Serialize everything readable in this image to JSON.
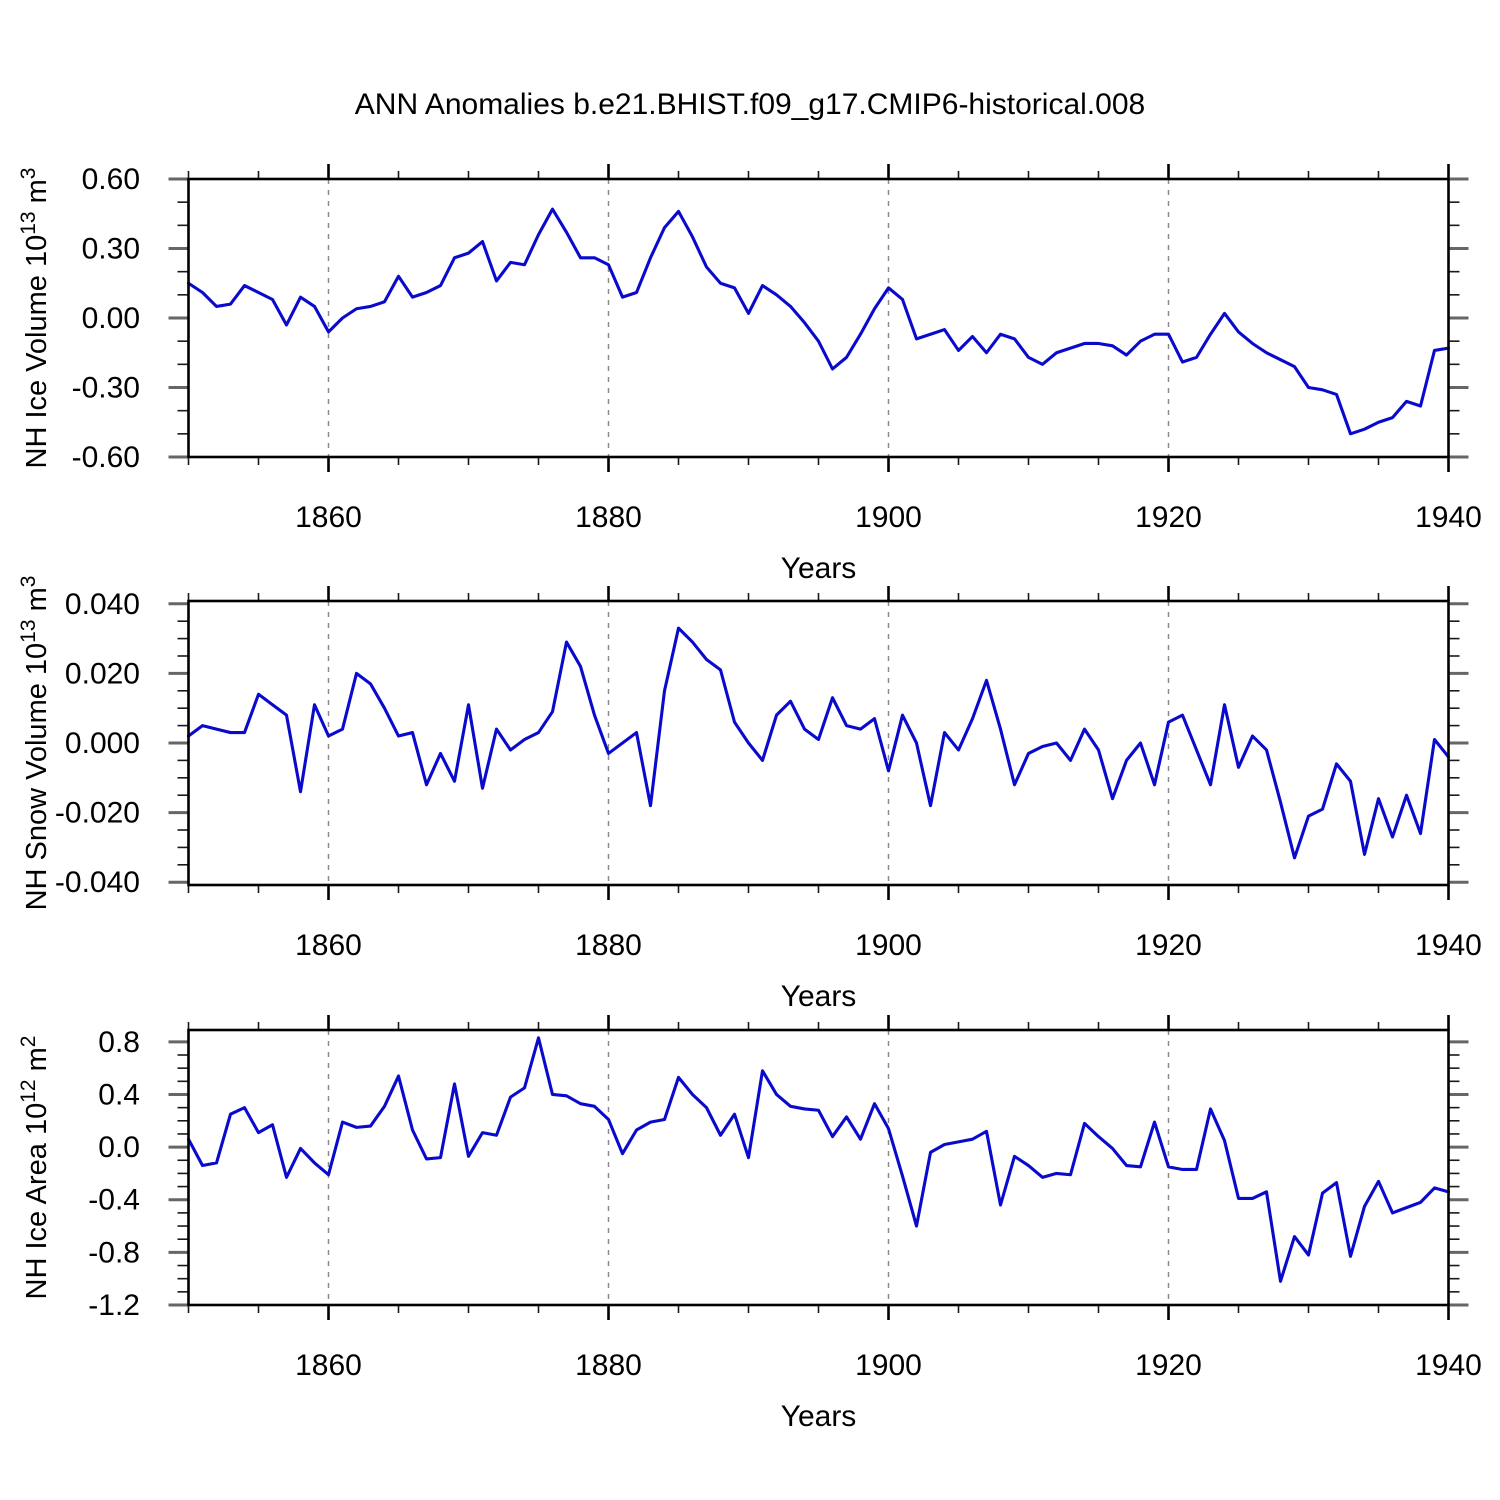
{
  "title": "ANN Anomalies b.e21.BHIST.f09_g17.CMIP6-historical.008",
  "colors": {
    "series_line": "#0a0acd",
    "axis": "#000000",
    "major_tick": "#666666",
    "minor_tick": "#1a1a1a",
    "gridline": "#8a8a8a",
    "background": "#ffffff"
  },
  "chart_data": {
    "type": "line",
    "title": "ANN Anomalies b.e21.BHIST.f09_g17.CMIP6-historical.008",
    "x": {
      "start": 1850,
      "end": 1940,
      "step": 1
    },
    "xlabel": "Years",
    "xticks": {
      "major": [
        1860,
        1880,
        1900,
        1920,
        1940
      ],
      "labels": [
        "1860",
        "1880",
        "1900",
        "1920",
        "1940"
      ],
      "minor_step": 5
    },
    "grid_x": [
      1860,
      1880,
      1900,
      1920
    ],
    "legend": "none",
    "grid": "vertical-dashed",
    "panels": [
      {
        "name": "nh-ice-volume",
        "ylabel": "NH Ice Volume 10¹³ m³",
        "ylabel_parts": [
          {
            "t": "NH Ice Volume 10"
          },
          {
            "t": "13",
            "sup": true
          },
          {
            "t": " m"
          },
          {
            "t": "3",
            "sup": true
          }
        ],
        "ylim": [
          -0.6,
          0.6
        ],
        "yticks": {
          "values": [
            0.6,
            0.3,
            0.0,
            -0.3,
            -0.6
          ],
          "labels": [
            "0.60",
            "0.30",
            "0.00",
            "-0.30",
            "-0.60"
          ],
          "minor_step": 0.1
        },
        "values": [
          0.15,
          0.11,
          0.05,
          0.06,
          0.14,
          0.11,
          0.08,
          -0.03,
          0.09,
          0.05,
          -0.06,
          0.0,
          0.04,
          0.05,
          0.07,
          0.18,
          0.09,
          0.11,
          0.14,
          0.26,
          0.28,
          0.33,
          0.16,
          0.24,
          0.23,
          0.36,
          0.47,
          0.37,
          0.26,
          0.26,
          0.23,
          0.09,
          0.11,
          0.26,
          0.39,
          0.46,
          0.35,
          0.22,
          0.15,
          0.13,
          0.02,
          0.14,
          0.1,
          0.05,
          -0.02,
          -0.1,
          -0.22,
          -0.17,
          -0.07,
          0.04,
          0.13,
          0.08,
          -0.09,
          -0.07,
          -0.05,
          -0.14,
          -0.08,
          -0.15,
          -0.07,
          -0.09,
          -0.17,
          -0.2,
          -0.15,
          -0.13,
          -0.11,
          -0.11,
          -0.12,
          -0.16,
          -0.1,
          -0.07,
          -0.07,
          -0.19,
          -0.17,
          -0.07,
          0.02,
          -0.06,
          -0.11,
          -0.15,
          -0.18,
          -0.21,
          -0.3,
          -0.31,
          -0.33,
          -0.5,
          -0.48,
          -0.45,
          -0.43,
          -0.36,
          -0.38,
          -0.14,
          -0.13
        ]
      },
      {
        "name": "nh-snow-volume",
        "ylabel": "NH Snow Volume 10¹³ m³",
        "ylabel_parts": [
          {
            "t": "NH Snow Volume 10"
          },
          {
            "t": "13",
            "sup": true
          },
          {
            "t": " m"
          },
          {
            "t": "3",
            "sup": true
          }
        ],
        "ylim": [
          -0.0408,
          0.0408
        ],
        "yticks": {
          "values": [
            0.04,
            0.02,
            0.0,
            -0.02,
            -0.04
          ],
          "labels": [
            "0.040",
            "0.020",
            "0.000",
            "-0.020",
            "-0.040"
          ],
          "minor_step": 0.005
        },
        "values": [
          0.002,
          0.005,
          0.004,
          0.003,
          0.003,
          0.014,
          0.011,
          0.008,
          -0.014,
          0.011,
          0.002,
          0.004,
          0.02,
          0.017,
          0.01,
          0.002,
          0.003,
          -0.012,
          -0.003,
          -0.011,
          0.011,
          -0.013,
          0.004,
          -0.002,
          0.001,
          0.003,
          0.009,
          0.029,
          0.022,
          0.008,
          -0.003,
          0.0,
          0.003,
          -0.018,
          0.015,
          0.033,
          0.029,
          0.024,
          0.021,
          0.006,
          0.0,
          -0.005,
          0.008,
          0.012,
          0.004,
          0.001,
          0.013,
          0.005,
          0.004,
          0.007,
          -0.008,
          0.008,
          0.0,
          -0.018,
          0.003,
          -0.002,
          0.007,
          0.018,
          0.004,
          -0.012,
          -0.003,
          -0.001,
          0.0,
          -0.005,
          0.004,
          -0.002,
          -0.016,
          -0.005,
          0.0,
          -0.012,
          0.006,
          0.008,
          -0.002,
          -0.012,
          0.011,
          -0.007,
          0.002,
          -0.002,
          -0.017,
          -0.033,
          -0.021,
          -0.019,
          -0.006,
          -0.011,
          -0.032,
          -0.016,
          -0.027,
          -0.015,
          -0.026,
          0.001,
          -0.004
        ]
      },
      {
        "name": "nh-ice-area",
        "ylabel": "NH Ice Area 10¹² m²",
        "ylabel_parts": [
          {
            "t": "NH Ice Area 10"
          },
          {
            "t": "12",
            "sup": true
          },
          {
            "t": " m"
          },
          {
            "t": "2",
            "sup": true
          }
        ],
        "ylim": [
          -1.2,
          0.89
        ],
        "yticks": {
          "values": [
            0.8,
            0.4,
            0.0,
            -0.4,
            -0.8,
            -1.2
          ],
          "labels": [
            "0.8",
            "0.4",
            "0.0",
            "-0.4",
            "-0.8",
            "-1.2"
          ],
          "minor_step": 0.1
        },
        "values": [
          0.06,
          -0.14,
          -0.12,
          0.25,
          0.3,
          0.11,
          0.17,
          -0.23,
          -0.01,
          -0.12,
          -0.21,
          0.19,
          0.15,
          0.16,
          0.31,
          0.54,
          0.13,
          -0.09,
          -0.08,
          0.48,
          -0.07,
          0.11,
          0.09,
          0.38,
          0.45,
          0.83,
          0.4,
          0.39,
          0.33,
          0.31,
          0.21,
          -0.05,
          0.13,
          0.19,
          0.21,
          0.53,
          0.4,
          0.3,
          0.09,
          0.25,
          -0.08,
          0.58,
          0.4,
          0.31,
          0.29,
          0.28,
          0.08,
          0.23,
          0.06,
          0.33,
          0.14,
          -0.22,
          -0.6,
          -0.04,
          0.02,
          0.04,
          0.06,
          0.12,
          -0.44,
          -0.07,
          -0.14,
          -0.23,
          -0.2,
          -0.21,
          0.18,
          0.08,
          -0.01,
          -0.14,
          -0.15,
          0.19,
          -0.15,
          -0.17,
          -0.17,
          0.29,
          0.05,
          -0.39,
          -0.39,
          -0.34,
          -1.02,
          -0.68,
          -0.82,
          -0.35,
          -0.27,
          -0.83,
          -0.45,
          -0.26,
          -0.5,
          -0.46,
          -0.42,
          -0.31,
          -0.34
        ]
      }
    ]
  }
}
